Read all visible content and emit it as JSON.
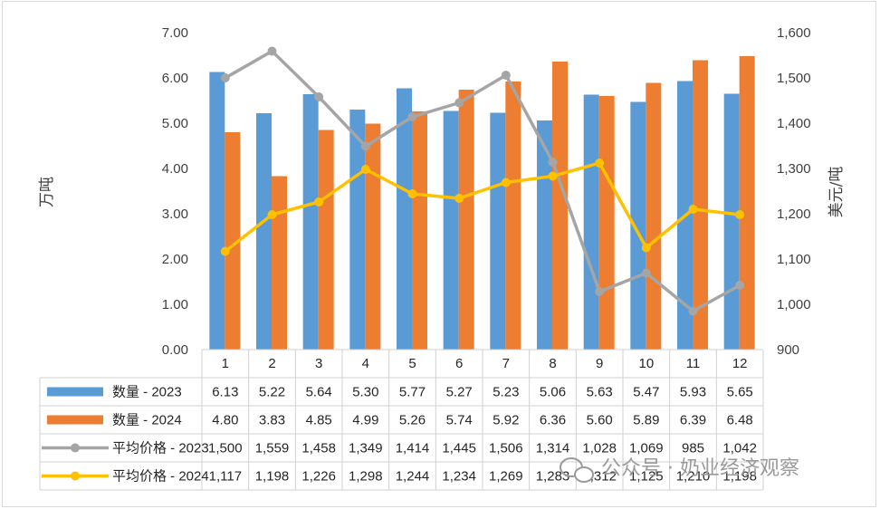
{
  "chart_data": {
    "type": "bar",
    "categories": [
      "1",
      "2",
      "3",
      "4",
      "5",
      "6",
      "7",
      "8",
      "9",
      "10",
      "11",
      "12"
    ],
    "series": [
      {
        "name": "数量 - 2023",
        "type": "bar",
        "axis": "left",
        "color": "#5B9BD5",
        "values": [
          6.13,
          5.22,
          5.64,
          5.3,
          5.77,
          5.27,
          5.23,
          5.06,
          5.63,
          5.47,
          5.93,
          5.65
        ],
        "labels": [
          "6.13",
          "5.22",
          "5.64",
          "5.30",
          "5.77",
          "5.27",
          "5.23",
          "5.06",
          "5.63",
          "5.47",
          "5.93",
          "5.65"
        ]
      },
      {
        "name": "数量 - 2024",
        "type": "bar",
        "axis": "left",
        "color": "#ED7D31",
        "values": [
          4.8,
          3.83,
          4.85,
          4.99,
          5.26,
          5.74,
          5.92,
          6.36,
          5.6,
          5.89,
          6.39,
          6.48
        ],
        "labels": [
          "4.80",
          "3.83",
          "4.85",
          "4.99",
          "5.26",
          "5.74",
          "5.92",
          "6.36",
          "5.60",
          "5.89",
          "6.39",
          "6.48"
        ]
      },
      {
        "name": "平均价格 - 2023",
        "type": "line",
        "axis": "right",
        "color": "#A5A5A5",
        "values": [
          1500,
          1559,
          1458,
          1349,
          1414,
          1445,
          1506,
          1314,
          1028,
          1069,
          985,
          1042
        ],
        "labels": [
          "1,500",
          "1,559",
          "1,458",
          "1,349",
          "1,414",
          "1,445",
          "1,506",
          "1,314",
          "1,028",
          "1,069",
          "985",
          "1,042"
        ]
      },
      {
        "name": "平均价格 - 2024",
        "type": "line",
        "axis": "right",
        "color": "#FFC000",
        "values": [
          1117,
          1198,
          1226,
          1298,
          1244,
          1234,
          1269,
          1283,
          1312,
          1125,
          1210,
          1198
        ],
        "labels": [
          "1,117",
          "1,198",
          "1,226",
          "1,298",
          "1,244",
          "1,234",
          "1,269",
          "1,283",
          "1,312",
          "1,125",
          "1,210",
          "1,198"
        ]
      }
    ],
    "ylabel": "万吨",
    "y2label": "美元/吨",
    "ylim": [
      0,
      7
    ],
    "y2lim": [
      900,
      1600
    ],
    "yticks": [
      "0.00",
      "1.00",
      "2.00",
      "3.00",
      "4.00",
      "5.00",
      "6.00",
      "7.00"
    ],
    "y2ticks": [
      "900",
      "1,000",
      "1,100",
      "1,200",
      "1,300",
      "1,400",
      "1,500",
      "1,600"
    ],
    "grid": false,
    "legend": "data-table"
  },
  "watermark": "公众号 · 奶业经济观察"
}
